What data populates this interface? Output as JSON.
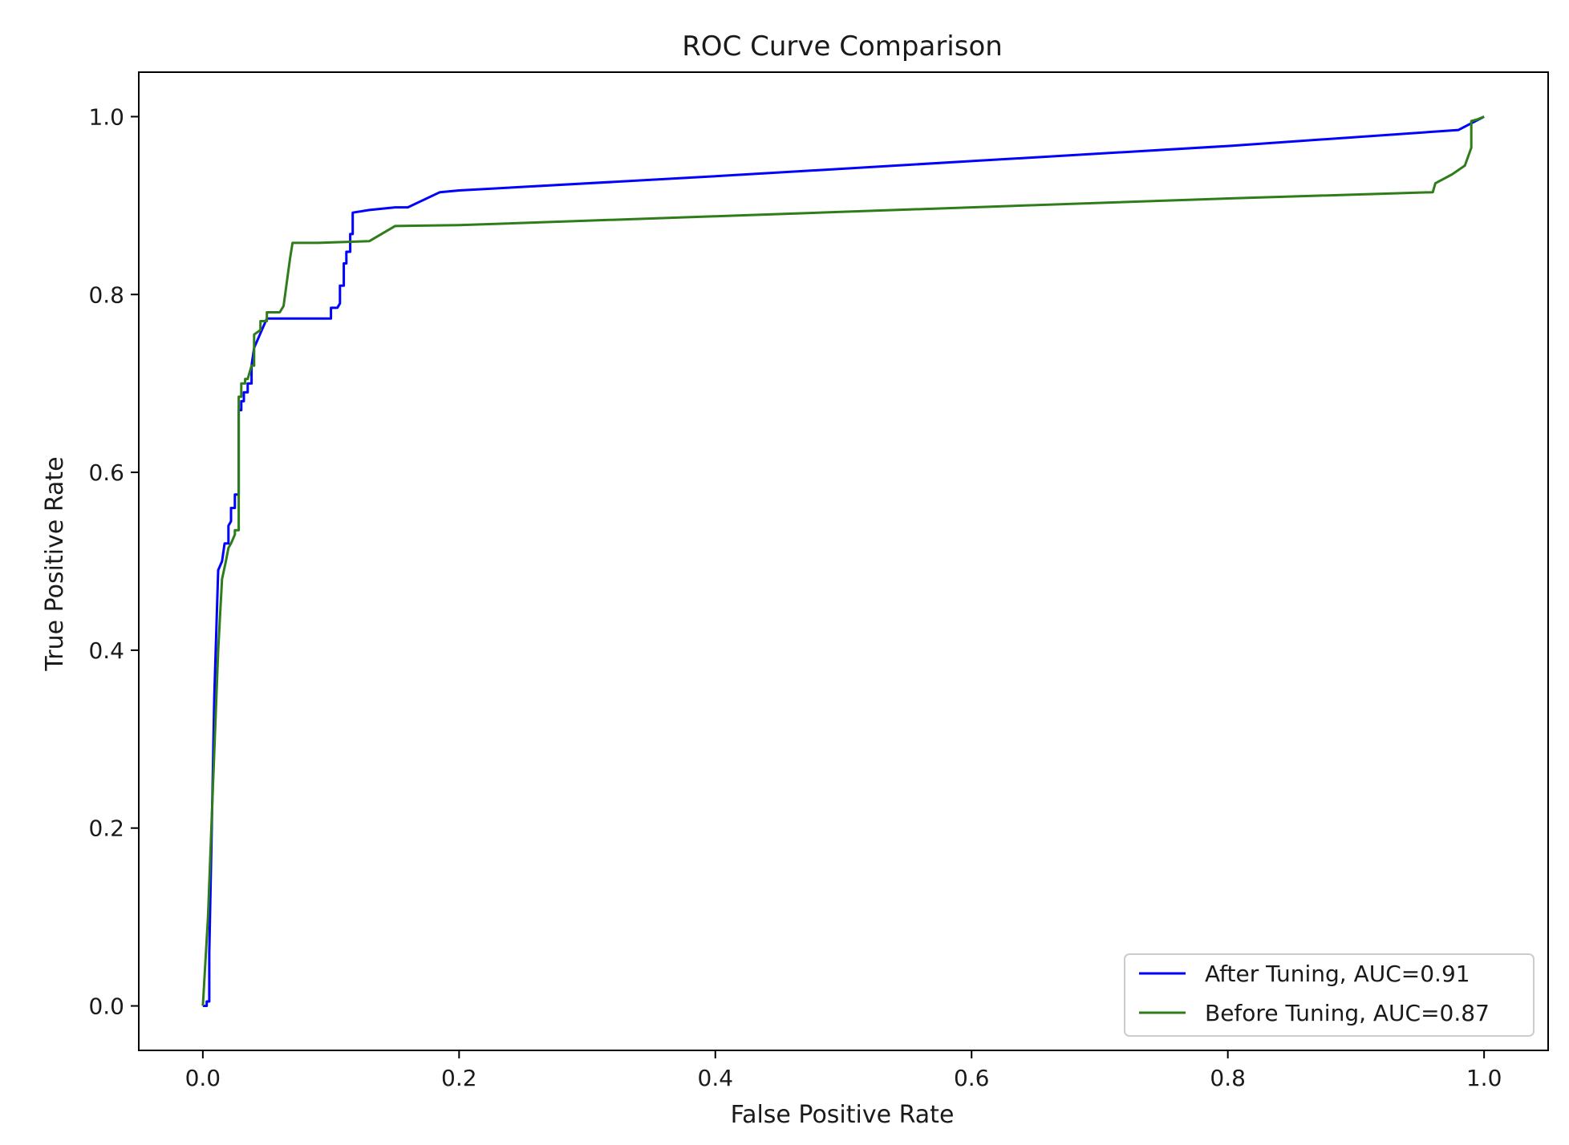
{
  "chart_data": {
    "type": "line",
    "title": "ROC Curve Comparison",
    "xlabel": "False Positive Rate",
    "ylabel": "True Positive Rate",
    "xlim": [
      -0.05,
      1.05
    ],
    "ylim": [
      -0.05,
      1.05
    ],
    "xticks": [
      0.0,
      0.2,
      0.4,
      0.6,
      0.8,
      1.0
    ],
    "yticks": [
      0.0,
      0.2,
      0.4,
      0.6,
      0.8,
      1.0
    ],
    "xtick_labels": [
      "0.0",
      "0.2",
      "0.4",
      "0.6",
      "0.8",
      "1.0"
    ],
    "ytick_labels": [
      "0.0",
      "0.2",
      "0.4",
      "0.6",
      "0.8",
      "1.0"
    ],
    "grid": false,
    "legend_position": "lower-right",
    "series": [
      {
        "name": "After Tuning, AUC=0.91",
        "color": "#0000ff",
        "x": [
          0.0,
          0.003,
          0.003,
          0.005,
          0.005,
          0.007,
          0.009,
          0.012,
          0.015,
          0.017,
          0.02,
          0.02,
          0.022,
          0.022,
          0.025,
          0.025,
          0.028,
          0.028,
          0.03,
          0.03,
          0.032,
          0.032,
          0.035,
          0.035,
          0.038,
          0.038,
          0.04,
          0.05,
          0.1,
          0.1,
          0.105,
          0.107,
          0.107,
          0.11,
          0.11,
          0.112,
          0.112,
          0.115,
          0.115,
          0.117,
          0.117,
          0.13,
          0.15,
          0.16,
          0.185,
          0.2,
          0.4,
          0.6,
          0.8,
          0.98,
          1.0
        ],
        "y": [
          0.0,
          0.0,
          0.005,
          0.005,
          0.06,
          0.2,
          0.35,
          0.49,
          0.5,
          0.52,
          0.52,
          0.54,
          0.545,
          0.56,
          0.56,
          0.575,
          0.575,
          0.67,
          0.67,
          0.68,
          0.68,
          0.69,
          0.69,
          0.7,
          0.7,
          0.72,
          0.74,
          0.773,
          0.773,
          0.785,
          0.785,
          0.79,
          0.81,
          0.81,
          0.835,
          0.835,
          0.848,
          0.848,
          0.868,
          0.868,
          0.892,
          0.895,
          0.898,
          0.898,
          0.915,
          0.917,
          0.933,
          0.95,
          0.967,
          0.985,
          1.0
        ]
      },
      {
        "name": "Before Tuning, AUC=0.87",
        "color": "#2e7d1a",
        "x": [
          0.0,
          0.004,
          0.008,
          0.012,
          0.015,
          0.018,
          0.02,
          0.022,
          0.025,
          0.025,
          0.028,
          0.028,
          0.03,
          0.03,
          0.033,
          0.033,
          0.035,
          0.038,
          0.04,
          0.04,
          0.045,
          0.045,
          0.05,
          0.05,
          0.06,
          0.063,
          0.068,
          0.07,
          0.09,
          0.13,
          0.15,
          0.2,
          0.4,
          0.6,
          0.8,
          0.96,
          0.962,
          0.975,
          0.98,
          0.985,
          0.985,
          0.99,
          0.99,
          0.995,
          1.0
        ],
        "y": [
          0.0,
          0.1,
          0.25,
          0.4,
          0.48,
          0.5,
          0.515,
          0.52,
          0.53,
          0.535,
          0.535,
          0.685,
          0.685,
          0.7,
          0.7,
          0.705,
          0.705,
          0.72,
          0.72,
          0.755,
          0.76,
          0.77,
          0.77,
          0.78,
          0.78,
          0.787,
          0.84,
          0.858,
          0.858,
          0.86,
          0.877,
          0.878,
          0.888,
          0.898,
          0.908,
          0.915,
          0.925,
          0.935,
          0.94,
          0.945,
          0.945,
          0.965,
          0.995,
          0.997,
          1.0
        ]
      }
    ]
  }
}
